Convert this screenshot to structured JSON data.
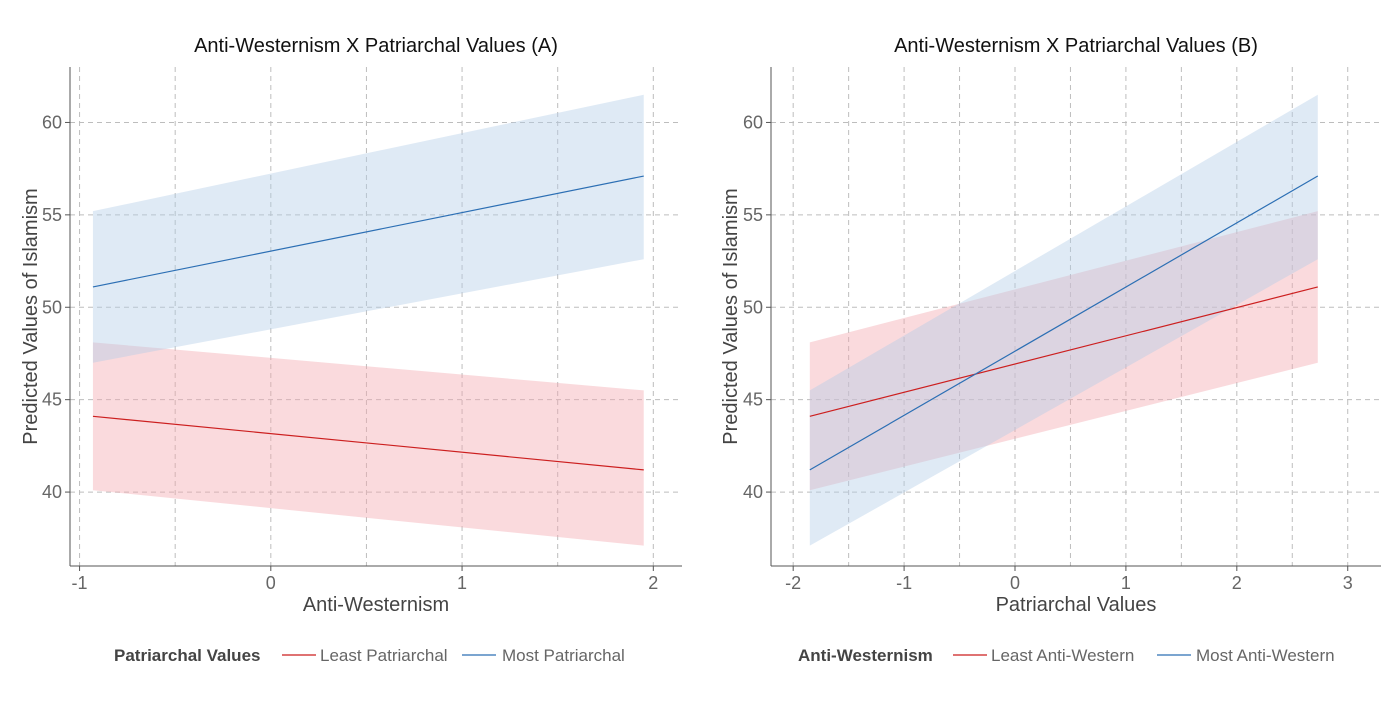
{
  "chart_data": [
    {
      "type": "line",
      "title": "Anti-Westernism X Patriarchal Values (A)",
      "xlabel": "Anti-Westernism",
      "ylabel": "Predicted Values of Islamism",
      "xlim": [
        -1.05,
        2.15
      ],
      "ylim": [
        36,
        63
      ],
      "x_ticks": [
        -1,
        0,
        1,
        2
      ],
      "x_tick_labels": [
        "-1",
        "0",
        "1",
        "2"
      ],
      "x_minor_grid": [
        -0.5,
        0.5,
        1.5
      ],
      "y_ticks": [
        40,
        45,
        50,
        55,
        60
      ],
      "y_tick_labels": [
        "40",
        "45",
        "50",
        "55",
        "60"
      ],
      "grid": true,
      "legend": {
        "position": "bottom",
        "title": "Patriarchal Values",
        "entries": [
          "Least Patriarchal",
          "Most Patriarchal"
        ]
      },
      "series": [
        {
          "name": "Least Patriarchal",
          "color": "#cc1f1f",
          "band_color": "#f4a6ad",
          "x": [
            -0.93,
            1.95
          ],
          "y": [
            44.1,
            41.2
          ],
          "lower": [
            40.1,
            37.1
          ],
          "upper": [
            48.1,
            45.5
          ]
        },
        {
          "name": "Most Patriarchal",
          "color": "#2c6fb4",
          "band_color": "#b3cde6",
          "x": [
            -0.93,
            1.95
          ],
          "y": [
            51.1,
            57.1
          ],
          "lower": [
            47.0,
            52.6
          ],
          "upper": [
            55.2,
            61.5
          ]
        }
      ]
    },
    {
      "type": "line",
      "title": "Anti-Westernism X Patriarchal Values (B)",
      "xlabel": "Patriarchal Values",
      "ylabel": "Predicted Values of Islamism",
      "xlim": [
        -2.2,
        3.3
      ],
      "ylim": [
        36,
        63
      ],
      "x_ticks": [
        -2,
        -1,
        0,
        1,
        2,
        3
      ],
      "x_tick_labels": [
        "-2",
        "-1",
        "0",
        "1",
        "2",
        "3"
      ],
      "x_minor_grid": [
        -1.5,
        -0.5,
        0.5,
        1.5,
        2.5
      ],
      "y_ticks": [
        40,
        45,
        50,
        55,
        60
      ],
      "y_tick_labels": [
        "40",
        "45",
        "50",
        "55",
        "60"
      ],
      "grid": true,
      "legend": {
        "position": "bottom",
        "title": "Anti-Westernism",
        "entries": [
          "Least Anti-Western",
          "Most Anti-Western"
        ]
      },
      "series": [
        {
          "name": "Least Anti-Western",
          "color": "#cc1f1f",
          "band_color": "#f4a6ad",
          "x": [
            -1.85,
            2.73
          ],
          "y": [
            44.1,
            51.1
          ],
          "lower": [
            40.1,
            47.0
          ],
          "upper": [
            48.1,
            55.2
          ]
        },
        {
          "name": "Most Anti-Western",
          "color": "#2c6fb4",
          "band_color": "#b3cde6",
          "x": [
            -1.85,
            2.73
          ],
          "y": [
            41.2,
            57.1
          ],
          "lower": [
            37.1,
            52.6
          ],
          "upper": [
            45.5,
            61.5
          ]
        }
      ]
    }
  ]
}
